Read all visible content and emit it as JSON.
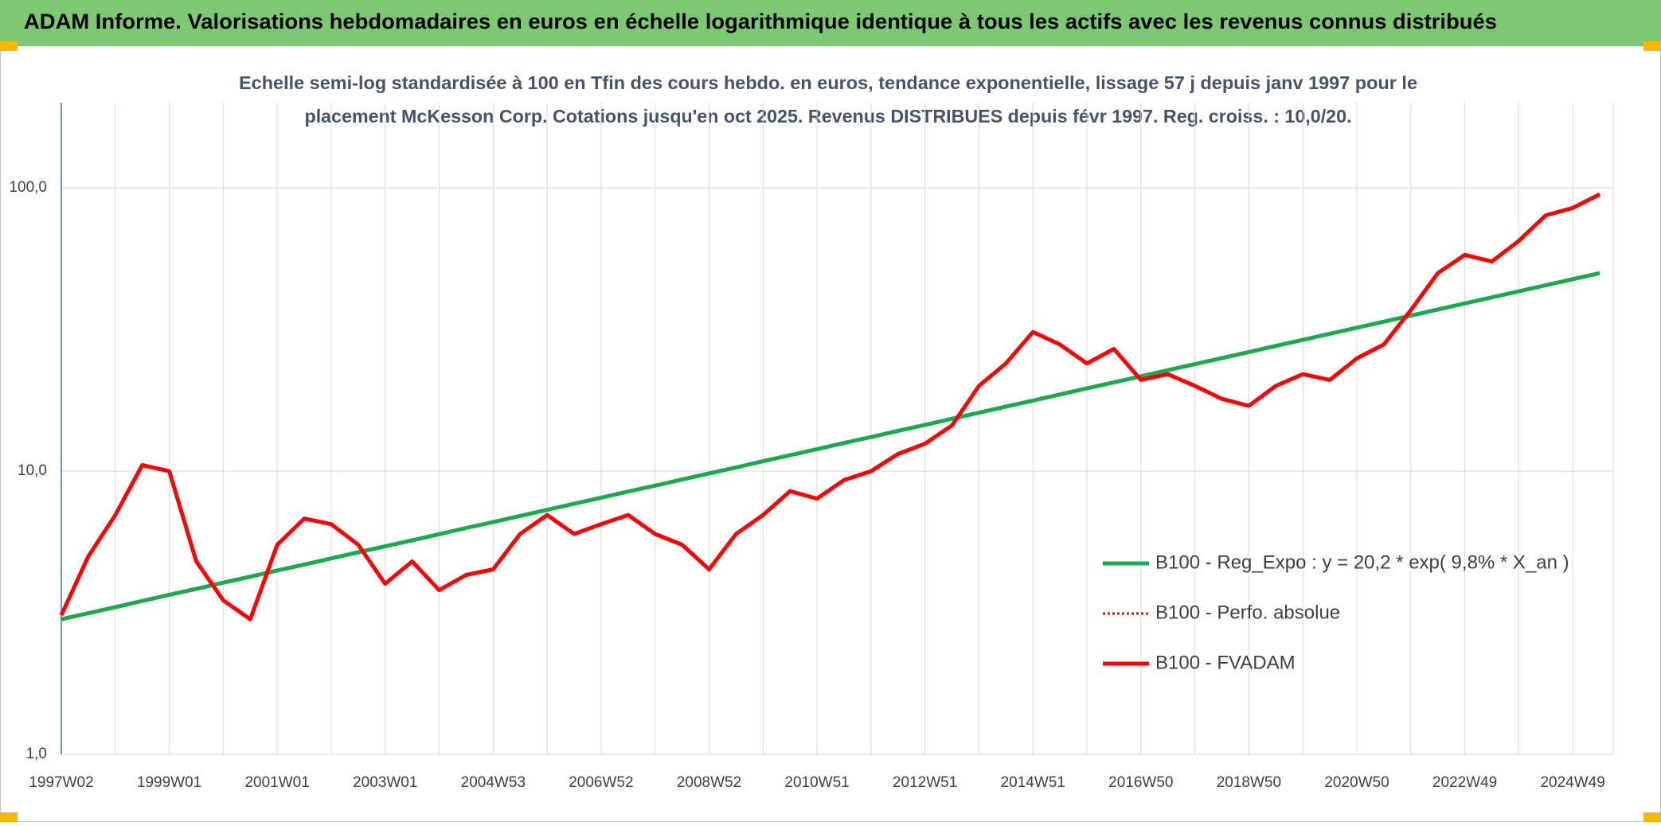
{
  "chart_data": {
    "type": "line",
    "title": "ADAM Informe. Valorisations hebdomadaires en euros en échelle logarithmique identique à tous les actifs avec les revenus connus distribués",
    "subtitle": [
      "Echelle semi-log standardisée à 100 en Tfin des cours hebdo. en euros, tendance exponentielle, lissage 57 j depuis janv 1997 pour le",
      "placement McKesson Corp. Cotations jusqu'en oct 2025. Revenus DISTRIBUES depuis févr 1997. Reg. croiss. : 10,0/20."
    ],
    "categories": [
      "1997W02",
      null,
      null,
      null,
      "1999W01",
      null,
      null,
      null,
      "2001W01",
      null,
      null,
      null,
      "2003W01",
      null,
      null,
      null,
      "2004W53",
      null,
      null,
      null,
      "2006W52",
      null,
      null,
      null,
      "2008W52",
      null,
      null,
      null,
      "2010W51",
      null,
      null,
      null,
      "2012W51",
      null,
      null,
      null,
      "2014W51",
      null,
      null,
      null,
      "2016W50",
      null,
      null,
      null,
      "2018W50",
      null,
      null,
      null,
      "2020W50",
      null,
      null,
      null,
      "2022W49",
      null,
      null,
      null,
      "2024W49",
      null
    ],
    "series": [
      {
        "name": "B100 - Reg_Expo : y = 20,2 * exp( 9,8% *  X_an )",
        "color": "#1aaa4e",
        "style": "solid",
        "values": [
          3.0,
          3.15,
          3.31,
          3.48,
          3.66,
          3.84,
          4.04,
          4.24,
          4.46,
          4.68,
          4.92,
          5.17,
          5.43,
          5.7,
          5.99,
          6.3,
          6.61,
          6.95,
          7.3,
          7.67,
          8.06,
          8.47,
          8.89,
          9.34,
          9.82,
          10.31,
          10.84,
          11.38,
          11.96,
          12.57,
          13.2,
          13.87,
          14.57,
          15.31,
          16.08,
          16.9,
          17.75,
          18.65,
          19.59,
          20.58,
          21.62,
          22.72,
          23.87,
          25.07,
          26.34,
          27.67,
          29.07,
          30.55,
          32.09,
          33.71,
          35.42,
          37.21,
          39.09,
          41.07,
          43.15,
          45.33,
          47.62,
          50.03
        ]
      },
      {
        "name": "B100 - Perfo. absolue",
        "color": "#ff0000",
        "style": "dotted",
        "values": [
          3.1,
          5.0,
          7.0,
          10.5,
          10.0,
          4.8,
          3.5,
          3.0,
          5.5,
          6.8,
          6.5,
          5.5,
          4.0,
          4.8,
          3.8,
          4.3,
          4.5,
          6.0,
          7.0,
          6.0,
          6.5,
          7.0,
          6.0,
          5.5,
          4.5,
          6.0,
          7.0,
          8.5,
          8.0,
          9.3,
          10.0,
          11.5,
          12.5,
          14.5,
          20.0,
          24.0,
          31.0,
          28.0,
          24.0,
          27.0,
          21.0,
          22.0,
          20.0,
          18.0,
          17.0,
          20.0,
          22.0,
          21.0,
          25.0,
          28.0,
          37.0,
          50.0,
          58.0,
          55.0,
          65.0,
          80.0,
          85.0,
          95.0
        ]
      },
      {
        "name": "B100 - FVADAM",
        "color": "#ff0000",
        "style": "solid",
        "values": [
          3.1,
          5.0,
          7.0,
          10.5,
          10.0,
          4.8,
          3.5,
          3.0,
          5.5,
          6.8,
          6.5,
          5.5,
          4.0,
          4.8,
          3.8,
          4.3,
          4.5,
          6.0,
          7.0,
          6.0,
          6.5,
          7.0,
          6.0,
          5.5,
          4.5,
          6.0,
          7.0,
          8.5,
          8.0,
          9.3,
          10.0,
          11.5,
          12.5,
          14.5,
          20.0,
          24.0,
          31.0,
          28.0,
          24.0,
          27.0,
          21.0,
          22.0,
          20.0,
          18.0,
          17.0,
          20.0,
          22.0,
          21.0,
          25.0,
          28.0,
          37.0,
          50.0,
          58.0,
          55.0,
          65.0,
          80.0,
          85.0,
          95.0
        ]
      }
    ],
    "ylim": [
      1,
      200
    ],
    "log_y": true,
    "yticks": [
      {
        "value": 1,
        "label": "1,0"
      },
      {
        "value": 10,
        "label": "10,0"
      },
      {
        "value": 100,
        "label": "100,0"
      }
    ],
    "grid": true,
    "legend": "right"
  }
}
